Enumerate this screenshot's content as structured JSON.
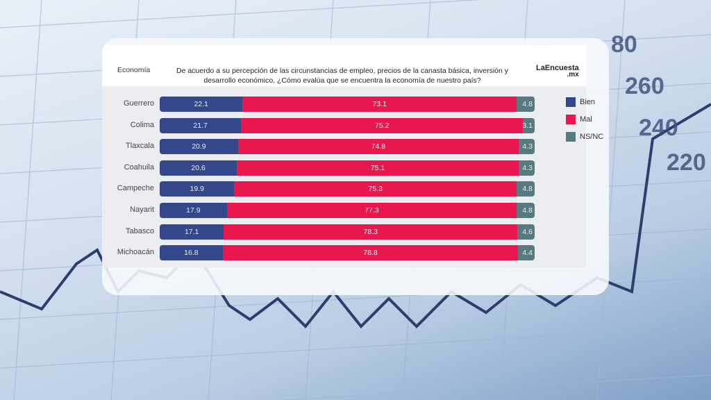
{
  "chart_data": {
    "type": "bar",
    "stacked": true,
    "orientation": "horizontal",
    "section_label": "Economía",
    "title": "De acuerdo a su percepción de las circunstancias de empleo, precios de la canasta básica, inversión y desarrollo económico, ¿Cómo evalúa que se encuentra la economía de nuestro país?",
    "brand": "LaEncuesta",
    "brand_suffix": ".mx",
    "categories": [
      "Guerrero",
      "Colima",
      "Tlaxcala",
      "Coahuila",
      "Campeche",
      "Nayarit",
      "Tabasco",
      "Michoacán"
    ],
    "series": [
      {
        "name": "Bien",
        "color": "#34478a",
        "values": [
          22.1,
          21.7,
          20.9,
          20.6,
          19.9,
          17.9,
          17.1,
          16.8
        ]
      },
      {
        "name": "Mal",
        "color": "#e8184f",
        "values": [
          73.1,
          75.2,
          74.8,
          75.1,
          75.3,
          77.3,
          78.3,
          78.8
        ]
      },
      {
        "name": "NS/NC",
        "color": "#567a80",
        "values": [
          4.8,
          3.1,
          4.3,
          4.3,
          4.8,
          4.8,
          4.6,
          4.4
        ]
      }
    ],
    "legend_position": "right",
    "xlim": [
      0,
      100
    ]
  }
}
